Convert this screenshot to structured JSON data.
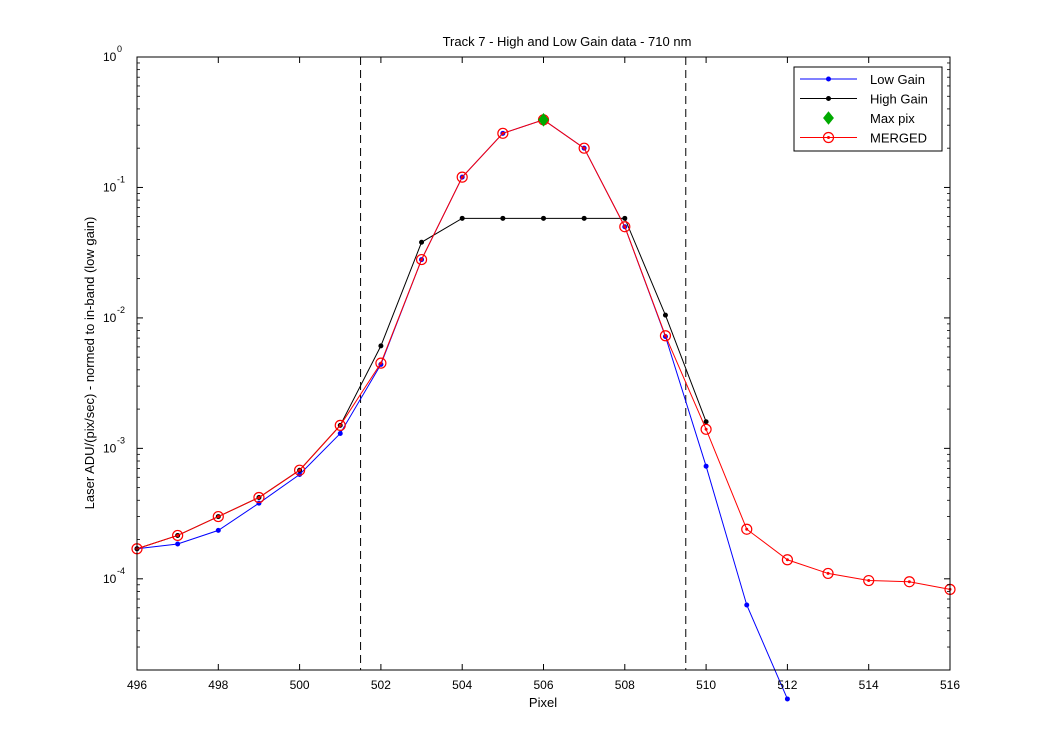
{
  "chart_data": {
    "type": "line",
    "title": "Track 7 - High and Low Gain data - 710 nm",
    "xlabel": "Pixel",
    "ylabel": "Laser ADU/(pix/sec) - normed to in-band (low gain)",
    "xlim": [
      496,
      516
    ],
    "ylim": [
      2e-05,
      1
    ],
    "yscale": "log",
    "x_ticks": [
      496,
      498,
      500,
      502,
      504,
      506,
      508,
      510,
      512,
      514,
      516
    ],
    "y_ticks": [
      {
        "value": 1,
        "base": "10",
        "exp": "0"
      },
      {
        "value": 0.1,
        "base": "10",
        "exp": "-1"
      },
      {
        "value": 0.01,
        "base": "10",
        "exp": "-2"
      },
      {
        "value": 0.001,
        "base": "10",
        "exp": "-3"
      },
      {
        "value": 0.0001,
        "base": "10",
        "exp": "-4"
      }
    ],
    "grid": false,
    "legend_position": "top-right",
    "vlines": [
      501.5,
      509.5
    ],
    "series": [
      {
        "name": "Low Gain",
        "color": "#0000ff",
        "marker": "dot",
        "x": [
          496,
          497,
          498,
          499,
          500,
          501,
          502,
          503,
          504,
          505,
          506,
          507,
          508,
          509,
          510,
          511,
          512
        ],
        "y": [
          0.00017,
          0.000185,
          0.000235,
          0.00038,
          0.00063,
          0.0013,
          0.0044,
          0.028,
          0.12,
          0.26,
          0.33,
          0.2,
          0.05,
          0.0072,
          0.00073,
          6.3e-05,
          1.2e-05
        ]
      },
      {
        "name": "High Gain",
        "color": "#000000",
        "marker": "dot",
        "x": [
          496,
          497,
          498,
          499,
          500,
          501,
          502,
          503,
          504,
          505,
          506,
          507,
          508,
          509,
          510
        ],
        "y": [
          0.00017,
          0.000215,
          0.0003,
          0.00042,
          0.00068,
          0.0015,
          0.0061,
          0.038,
          0.058,
          0.058,
          0.058,
          0.058,
          0.058,
          0.0105,
          0.0016
        ]
      },
      {
        "name": "Max pix",
        "color": "#00aa00",
        "marker": "diamond",
        "x": [
          506
        ],
        "y": [
          0.33
        ]
      },
      {
        "name": "MERGED",
        "color": "#ff0000",
        "marker": "circle",
        "x": [
          496,
          497,
          498,
          499,
          500,
          501,
          502,
          503,
          504,
          505,
          506,
          507,
          508,
          509,
          510,
          511,
          512,
          513,
          514,
          515,
          516
        ],
        "y": [
          0.00017,
          0.000215,
          0.0003,
          0.00042,
          0.00068,
          0.0015,
          0.0045,
          0.028,
          0.12,
          0.26,
          0.33,
          0.2,
          0.05,
          0.0073,
          0.0014,
          0.00024,
          0.00014,
          0.00011,
          9.7e-05,
          9.5e-05,
          8.3e-05
        ]
      }
    ]
  }
}
